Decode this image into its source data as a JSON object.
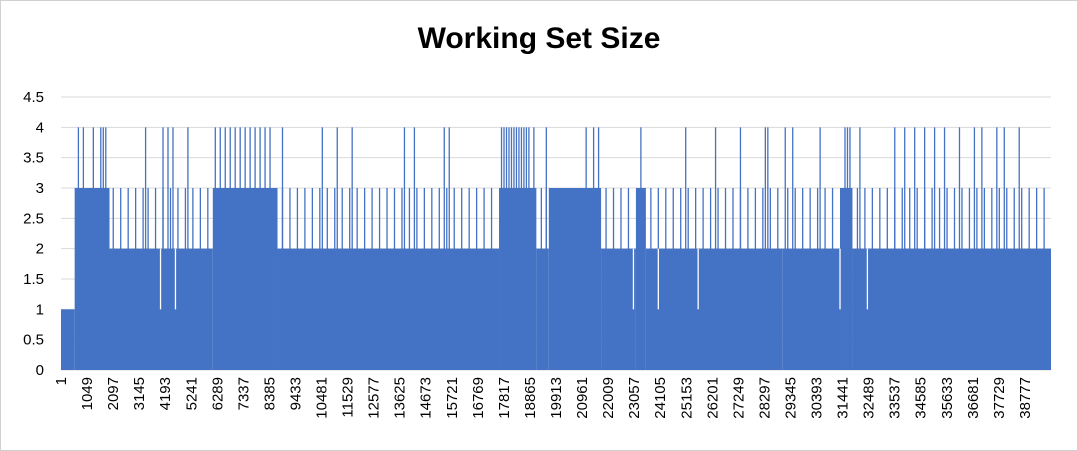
{
  "chart_data": {
    "type": "area",
    "title": "Working Set Size",
    "xlabel": "",
    "ylabel": "",
    "ylim": [
      0,
      4.5
    ],
    "y_ticks": [
      "0",
      "0.5",
      "1",
      "1.5",
      "2",
      "2.5",
      "3",
      "3.5",
      "4",
      "4.5"
    ],
    "x_tick_labels": [
      "1",
      "1049",
      "2097",
      "3145",
      "4193",
      "5241",
      "6289",
      "7337",
      "8385",
      "9433",
      "10481",
      "11529",
      "12577",
      "13625",
      "14673",
      "15721",
      "16769",
      "17817",
      "18865",
      "19913",
      "20961",
      "22009",
      "23057",
      "24105",
      "25153",
      "26201",
      "27249",
      "28297",
      "29345",
      "30393",
      "31441",
      "32489",
      "33537",
      "34585",
      "35633",
      "36681",
      "37729",
      "38777"
    ],
    "x_range": [
      1,
      39777
    ],
    "grid": true,
    "color": "#4472C4",
    "series": [
      {
        "base_segments": [
          {
            "x_start": 1,
            "x_end": 550,
            "value": 1
          },
          {
            "x_start": 550,
            "x_end": 1950,
            "value": 3
          },
          {
            "x_start": 1950,
            "x_end": 6100,
            "value": 2
          },
          {
            "x_start": 6100,
            "x_end": 8700,
            "value": 3
          },
          {
            "x_start": 8700,
            "x_end": 17600,
            "value": 2
          },
          {
            "x_start": 17600,
            "x_end": 19100,
            "value": 3
          },
          {
            "x_start": 19100,
            "x_end": 19600,
            "value": 2
          },
          {
            "x_start": 19600,
            "x_end": 21700,
            "value": 3
          },
          {
            "x_start": 21700,
            "x_end": 23100,
            "value": 2
          },
          {
            "x_start": 23100,
            "x_end": 23500,
            "value": 3
          },
          {
            "x_start": 23500,
            "x_end": 29000,
            "value": 2
          },
          {
            "x_start": 29000,
            "x_end": 31300,
            "value": 2
          },
          {
            "x_start": 31300,
            "x_end": 31800,
            "value": 3
          },
          {
            "x_start": 31800,
            "x_end": 39777,
            "value": 2
          }
        ],
        "spikes_to_3": [
          2100,
          2400,
          2700,
          3000,
          3300,
          3500,
          3800,
          4100,
          4400,
          4700,
          5000,
          5300,
          5600,
          5900,
          8900,
          9200,
          9500,
          9800,
          10100,
          10400,
          10700,
          11000,
          11300,
          11600,
          11900,
          12200,
          12500,
          12800,
          13100,
          13400,
          13700,
          14000,
          14300,
          14600,
          14900,
          15200,
          15500,
          15800,
          16100,
          16400,
          16700,
          17000,
          17300,
          19300,
          19500,
          21900,
          22200,
          22500,
          22800,
          23700,
          24000,
          24300,
          24600,
          24900,
          25200,
          25500,
          25800,
          26100,
          26400,
          26700,
          27000,
          27300,
          27600,
          27900,
          28200,
          28500,
          28800,
          29200,
          29500,
          29800,
          30100,
          30400,
          30700,
          31000,
          32000,
          32300,
          32600,
          32900,
          33200,
          33500,
          33800,
          34100,
          34400,
          34700,
          35000,
          35300,
          35600,
          35900,
          36200,
          36500,
          36800,
          37100,
          37400,
          37700,
          38000,
          38300,
          38600,
          38900,
          39200,
          39500
        ],
        "spikes_to_4": [
          700,
          900,
          1300,
          1600,
          1700,
          1800,
          3400,
          4100,
          4300,
          4500,
          5100,
          6200,
          6400,
          6600,
          6800,
          7000,
          7200,
          7400,
          7600,
          7800,
          8000,
          8200,
          8400,
          8900,
          10500,
          11100,
          11700,
          13800,
          14200,
          15400,
          15600,
          17700,
          17800,
          17900,
          18000,
          18100,
          18200,
          18300,
          18400,
          18500,
          18600,
          18700,
          18800,
          19000,
          19500,
          21100,
          21400,
          21600,
          23300,
          25100,
          26300,
          27300,
          28300,
          28400,
          29100,
          29400,
          30500,
          31500,
          31600,
          31700,
          32100,
          33500,
          33900,
          34300,
          34700,
          35100,
          35500,
          36100,
          36700,
          37000,
          37600,
          37900,
          38500
        ],
        "dips_to_1": [
          4000,
          4600,
          23000,
          24000,
          25600,
          31300,
          32400
        ]
      }
    ]
  }
}
